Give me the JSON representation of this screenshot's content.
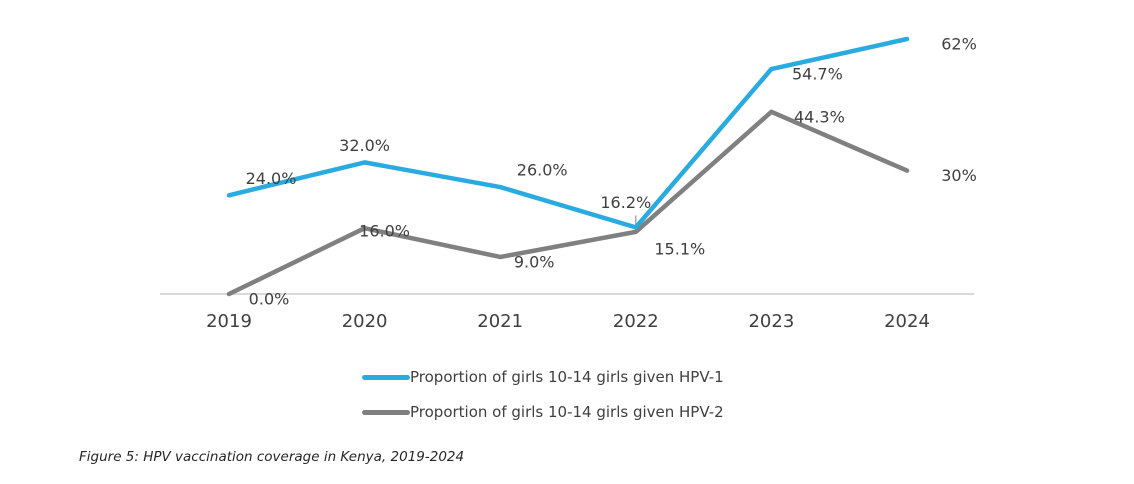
{
  "chart_data": {
    "type": "line",
    "title": "",
    "xlabel": "",
    "ylabel": "",
    "x": [
      "2019",
      "2020",
      "2021",
      "2022",
      "2023",
      "2024"
    ],
    "ylim": [
      0,
      62
    ],
    "grid": false,
    "legend_position": "bottom",
    "series": [
      {
        "name": "Proportion of girls 10-14 girls given HPV-1",
        "color": "#29abe2",
        "values": [
          24.0,
          32.0,
          26.0,
          16.2,
          54.7,
          62
        ],
        "labels": [
          "24.0%",
          "32.0%",
          "26.0%",
          "16.2%",
          "54.7%",
          "62%"
        ]
      },
      {
        "name": "Proportion of girls 10-14 girls given HPV-2",
        "color": "#808080",
        "values": [
          0.0,
          16.0,
          9.0,
          15.1,
          44.3,
          30
        ],
        "labels": [
          "0.0%",
          "16.0%",
          "9.0%",
          "15.1%",
          "44.3%",
          "30%"
        ]
      }
    ]
  },
  "caption": "Figure 5: HPV vaccination coverage in Kenya, 2019-2024"
}
